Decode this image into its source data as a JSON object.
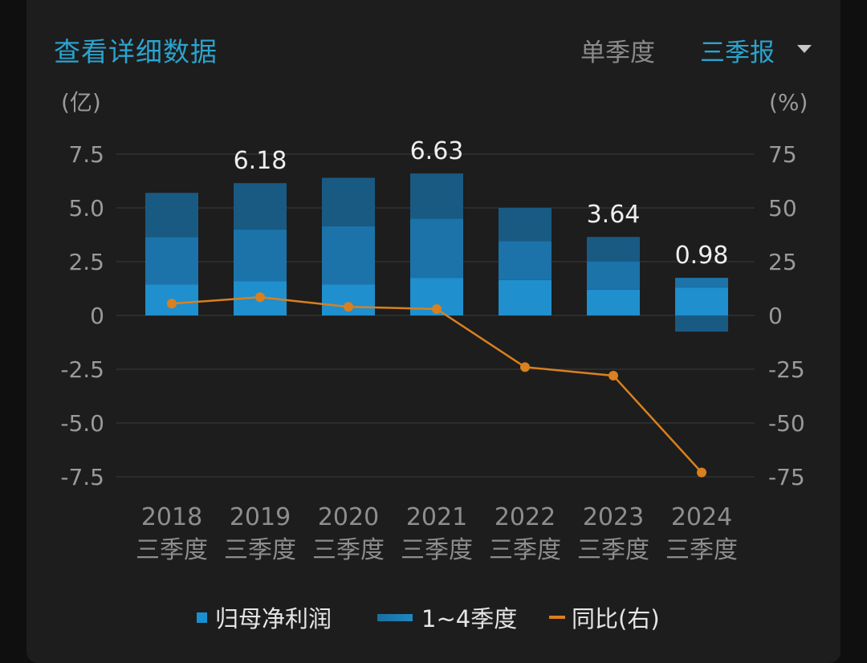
{
  "header": {
    "title": "查看详细数据",
    "option_single": "单季度",
    "option_selected": "三季报"
  },
  "axis_units": {
    "left": "(亿)",
    "right": "(%)"
  },
  "legend": {
    "bar_label": "归母净利润",
    "stack_label": "1~4季度",
    "line_label": "同比(右)"
  },
  "colors": {
    "accent": "#2aa4cf",
    "q1": "#1f8fce",
    "q2": "#1b73a9",
    "q3": "#195a83",
    "line": "#d9801f"
  },
  "chart_data": {
    "type": "bar",
    "categories": [
      "2018\n三季度",
      "2019\n三季度",
      "2020\n三季度",
      "2021\n三季度",
      "2022\n三季度",
      "2023\n三季度",
      "2024\n三季度"
    ],
    "ylim": [
      -7.5,
      7.5
    ],
    "y2lim": [
      -75,
      75
    ],
    "yticks": [
      "7.5",
      "5.0",
      "2.5",
      "0",
      "-2.5",
      "-5.0",
      "-7.5"
    ],
    "y2ticks": [
      "75",
      "50",
      "25",
      "0",
      "-25",
      "-50",
      "-75"
    ],
    "series": [
      {
        "name": "1~4季度",
        "values": [
          1.45,
          1.6,
          1.45,
          1.75,
          1.65,
          1.2,
          1.3
        ]
      },
      {
        "name": "1~4季度",
        "values": [
          2.2,
          2.4,
          2.7,
          2.75,
          1.8,
          1.3,
          0.45
        ]
      },
      {
        "name": "1~4季度",
        "values": [
          2.05,
          2.15,
          2.25,
          2.1,
          1.55,
          1.15,
          -0.75
        ]
      }
    ],
    "line": {
      "name": "同比(右)",
      "values": [
        5.5,
        8.5,
        4.0,
        3.0,
        -24,
        -28,
        -73
      ]
    },
    "data_labels": [
      "",
      "6.18",
      "",
      "6.63",
      "",
      "3.64",
      "0.98"
    ],
    "grid": true,
    "legend_position": "bottom"
  }
}
